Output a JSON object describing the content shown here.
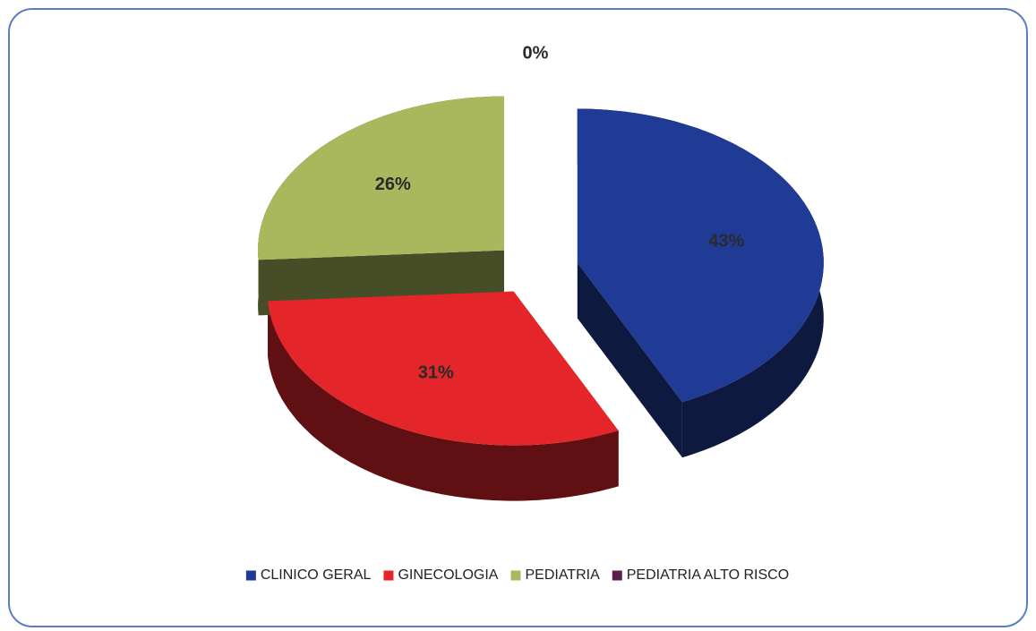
{
  "chart_data": {
    "type": "pie",
    "categories": [
      "CLINICO GERAL",
      "GINECOLOGIA",
      "PEDIATRIA",
      "PEDIATRIA ALTO RISCO"
    ],
    "values": [
      43,
      31,
      26,
      0
    ],
    "value_labels": [
      "43%",
      "31%",
      "26%",
      "0%"
    ],
    "colors": [
      "#1f3b95",
      "#e4262b",
      "#a9b85c",
      "#5b1d4b"
    ],
    "legend": "bottom"
  }
}
